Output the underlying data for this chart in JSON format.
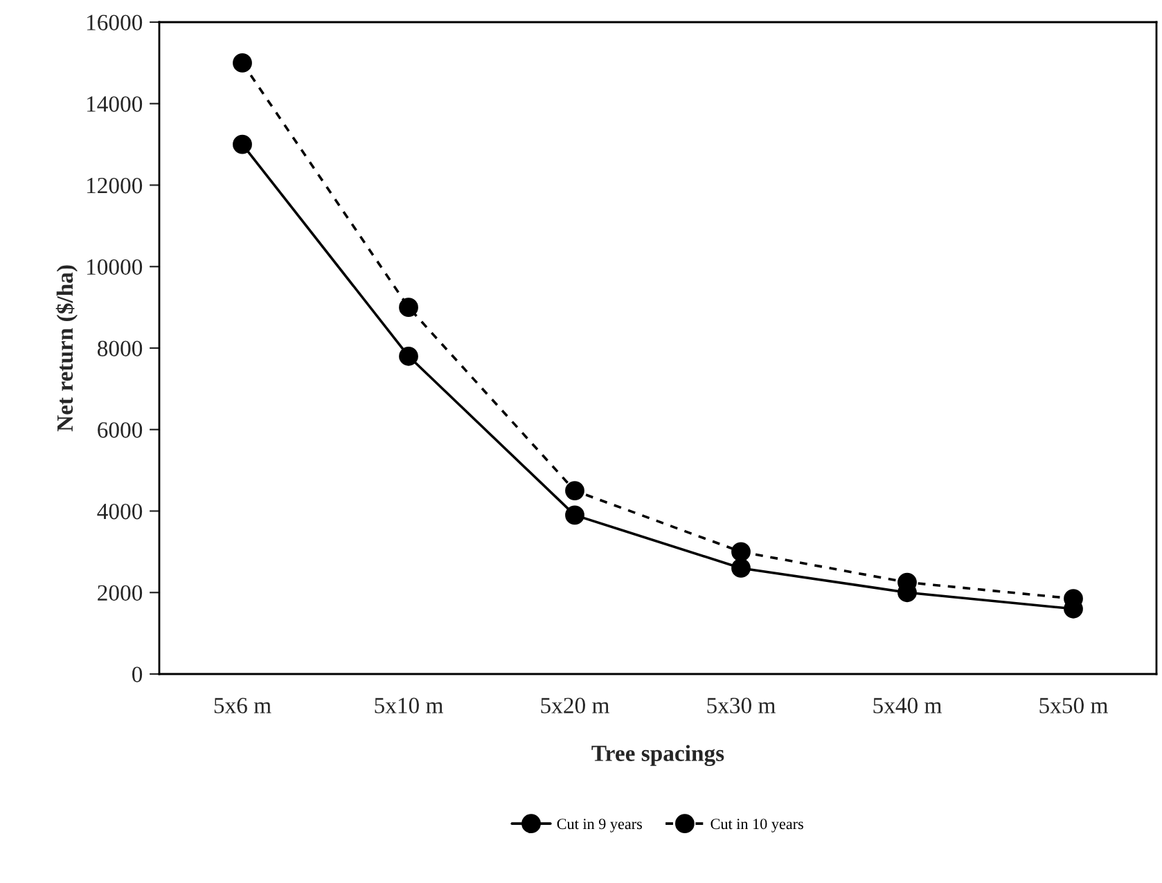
{
  "chart_data": {
    "type": "line",
    "xlabel": "Tree spacings",
    "ylabel": "Net return ($/ha)",
    "categories": [
      "5x6 m",
      "5x10 m",
      "5x20 m",
      "5x30 m",
      "5x40 m",
      "5x50 m"
    ],
    "series": [
      {
        "name": "Cut in 9 years",
        "color": "#000000",
        "line_style": "solid",
        "values": [
          13000,
          7800,
          3900,
          2600,
          2000,
          1600
        ]
      },
      {
        "name": "Cut in 10 years",
        "color": "#000000",
        "line_style": "dashed",
        "values": [
          15000,
          9000,
          4500,
          3000,
          2250,
          1850
        ]
      }
    ],
    "ylim": [
      0,
      16000
    ],
    "yticks": [
      0,
      2000,
      4000,
      6000,
      8000,
      10000,
      12000,
      14000,
      16000
    ],
    "marker": "circle",
    "grid": false,
    "legend": "bottom"
  }
}
